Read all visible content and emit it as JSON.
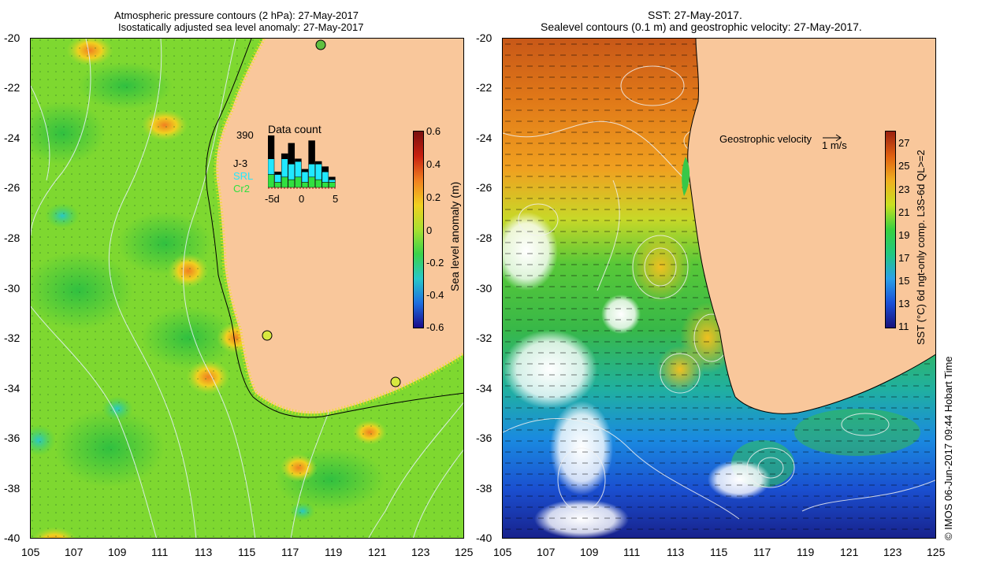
{
  "left_panel": {
    "title_line1": "Atmospheric pressure contours (2 hPa): 27-May-2017",
    "title_line2": "Isostatically adjusted sea level anomaly: 27-May-2017",
    "colorbar_label": "Sea level anomaly (m)",
    "colorbar_ticks": [
      "0.6",
      "0.4",
      "0.2",
      "0",
      "-0.2",
      "-0.4",
      "-0.6"
    ],
    "inset": {
      "title": "Data count",
      "max_count": "390",
      "legend": [
        "J-3",
        "SRL",
        "Cr2"
      ],
      "x_ticks": [
        "-5d",
        "0",
        "5"
      ]
    }
  },
  "right_panel": {
    "title_line1": "SST: 27-May-2017.",
    "title_line2": "Sealevel contours (0.1 m) and geostrophic velocity: 27-May-2017.",
    "colorbar_label": "SST (°C) 6d ngt-only comp. L3S-6d QL>=2",
    "colorbar_ticks": [
      "27",
      "25",
      "23",
      "21",
      "19",
      "17",
      "15",
      "13",
      "11"
    ],
    "velocity_label": "Geostrophic velocity",
    "velocity_scale": "1 m/s"
  },
  "axes": {
    "lat_ticks": [
      "-20",
      "-22",
      "-24",
      "-26",
      "-28",
      "-30",
      "-32",
      "-34",
      "-36",
      "-38",
      "-40"
    ],
    "lon_ticks": [
      "105",
      "107",
      "109",
      "111",
      "113",
      "115",
      "117",
      "119",
      "121",
      "123",
      "125"
    ]
  },
  "credit": "© IMOS 06-Jun-2017 09:44 Hobart Time",
  "colors": {
    "land": "#f9c79b",
    "sla_scale": [
      "#1a0a8a",
      "#1f6fe0",
      "#28c8c8",
      "#3ad24a",
      "#a8e030",
      "#f0d020",
      "#f08020",
      "#c82010",
      "#7a1010"
    ],
    "sst_scale": [
      "#18127a",
      "#1a4fd8",
      "#2aa0e8",
      "#20c880",
      "#38d040",
      "#c8e020",
      "#f0b020",
      "#e06010",
      "#9a2010"
    ],
    "inset_bars": {
      "J-3": "#000000",
      "SRL": "#20e8ff",
      "Cr2": "#30e040"
    }
  }
}
